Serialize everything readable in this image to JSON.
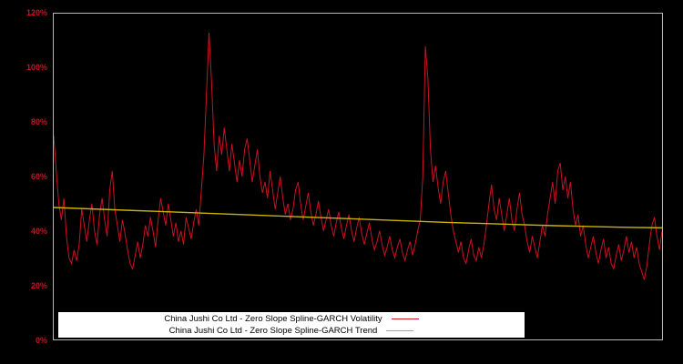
{
  "chart_data": {
    "type": "line",
    "title": "",
    "xlabel": "",
    "ylabel": "",
    "ylim": [
      0,
      120
    ],
    "grid": false,
    "background": "#000000",
    "axis_label_color": "#cc1122",
    "frame_color": "#b8b8b8",
    "legend_position": "bottom-center",
    "legend_background": "#ffffff",
    "yticks": [
      {
        "label": "0%",
        "value": 0
      },
      {
        "label": "20%",
        "value": 20
      },
      {
        "label": "40%",
        "value": 40
      },
      {
        "label": "60%",
        "value": 60
      },
      {
        "label": "80%",
        "value": 80
      },
      {
        "label": "100%",
        "value": 100
      },
      {
        "label": "120%",
        "value": 120
      }
    ],
    "series": [
      {
        "name": "China Jushi Co Ltd - Zero Slope Spline-GARCH Volatility",
        "color": "#cc1122",
        "stroke_width": 1,
        "values": [
          75,
          62,
          50,
          44,
          52,
          38,
          30,
          28,
          33,
          29,
          35,
          48,
          42,
          36,
          44,
          50,
          40,
          35,
          46,
          52,
          44,
          38,
          55,
          62,
          48,
          42,
          36,
          44,
          39,
          33,
          28,
          26,
          31,
          36,
          30,
          35,
          42,
          38,
          45,
          40,
          34,
          44,
          52,
          47,
          42,
          50,
          44,
          38,
          43,
          36,
          40,
          35,
          45,
          41,
          37,
          43,
          48,
          42,
          55,
          68,
          90,
          113,
          95,
          72,
          62,
          75,
          68,
          78,
          70,
          62,
          72,
          65,
          58,
          66,
          60,
          70,
          74,
          66,
          58,
          64,
          70,
          60,
          54,
          58,
          52,
          62,
          55,
          48,
          54,
          60,
          52,
          46,
          50,
          44,
          48,
          55,
          58,
          50,
          44,
          49,
          54,
          47,
          42,
          46,
          51,
          45,
          40,
          44,
          48,
          42,
          38,
          43,
          47,
          41,
          37,
          42,
          46,
          40,
          36,
          41,
          45,
          39,
          35,
          39,
          43,
          37,
          33,
          36,
          40,
          35,
          31,
          34,
          38,
          33,
          30,
          34,
          37,
          32,
          29,
          33,
          36,
          31,
          35,
          40,
          44,
          60,
          108,
          96,
          70,
          58,
          64,
          56,
          50,
          58,
          62,
          54,
          46,
          40,
          36,
          32,
          36,
          30,
          28,
          33,
          37,
          31,
          29,
          34,
          30,
          35,
          42,
          50,
          57,
          48,
          44,
          52,
          46,
          40,
          46,
          52,
          44,
          40,
          48,
          54,
          46,
          42,
          36,
          32,
          38,
          34,
          30,
          36,
          42,
          38,
          46,
          52,
          58,
          50,
          62,
          65,
          55,
          60,
          52,
          58,
          48,
          42,
          46,
          38,
          42,
          35,
          30,
          34,
          38,
          32,
          28,
          33,
          37,
          30,
          34,
          28,
          26,
          31,
          35,
          29,
          33,
          38,
          32,
          36,
          30,
          34,
          28,
          25,
          22,
          27,
          35,
          42,
          45,
          38,
          33,
          40
        ]
      },
      {
        "name": "China Jushi Co Ltd - Zero Slope Spline-GARCH Trend",
        "color": "#c8b400",
        "stroke_width": 1.4,
        "values": [
          48.6,
          48.1,
          47.6,
          47.1,
          46.6,
          46.1,
          45.6,
          45.1,
          44.6,
          44.1,
          43.6,
          43.1,
          42.7,
          42.3,
          41.9,
          41.6,
          41.3,
          41.1
        ]
      }
    ]
  },
  "legend": {
    "items": [
      {
        "label": "China Jushi Co Ltd - Zero Slope Spline-GARCH Volatility",
        "color": "#cc1122"
      },
      {
        "label": "China Jushi Co Ltd - Zero Slope Spline-GARCH Trend",
        "color": "#c8b400"
      }
    ]
  }
}
